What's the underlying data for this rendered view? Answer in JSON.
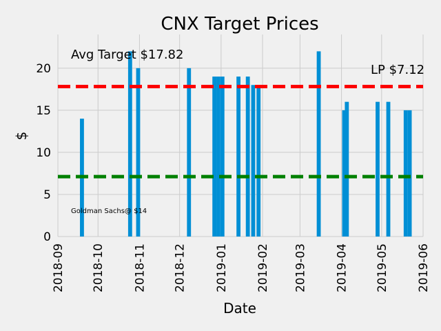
{
  "chart_data": {
    "type": "bar",
    "title": "CNX Target Prices",
    "xlabel": "Date",
    "ylabel": "$",
    "xlim": [
      "2018-09-01",
      "2019-06-01"
    ],
    "ylim": [
      0,
      24
    ],
    "y_ticks": [
      0,
      5,
      10,
      15,
      20
    ],
    "x_ticks": [
      "2018-09",
      "2018-10",
      "2018-11",
      "2018-12",
      "2019-01",
      "2019-02",
      "2019-03",
      "2019-04",
      "2019-05",
      "2019-06"
    ],
    "grid": true,
    "bar_color": "#008fd5",
    "bars": [
      {
        "date": "2018-09-19",
        "value": 14
      },
      {
        "date": "2018-10-25",
        "value": 22
      },
      {
        "date": "2018-10-31",
        "value": 20
      },
      {
        "date": "2018-12-08",
        "value": 20
      },
      {
        "date": "2018-12-27",
        "value": 19
      },
      {
        "date": "2018-12-30",
        "value": 19
      },
      {
        "date": "2019-01-02",
        "value": 19
      },
      {
        "date": "2019-01-14",
        "value": 19
      },
      {
        "date": "2019-01-21",
        "value": 19
      },
      {
        "date": "2019-01-25",
        "value": 18
      },
      {
        "date": "2019-01-29",
        "value": 18
      },
      {
        "date": "2019-03-15",
        "value": 22
      },
      {
        "date": "2019-04-03",
        "value": 15
      },
      {
        "date": "2019-04-05",
        "value": 16
      },
      {
        "date": "2019-04-28",
        "value": 16
      },
      {
        "date": "2019-05-06",
        "value": 16
      },
      {
        "date": "2019-05-19",
        "value": 15
      },
      {
        "date": "2019-05-22",
        "value": 15
      }
    ],
    "reference_lines": [
      {
        "label": "Avg Target $17.82",
        "value": 17.82,
        "color": "#fc0000"
      },
      {
        "label": "LP $7.12",
        "value": 7.12,
        "color": "#008000"
      }
    ],
    "annotations": [
      {
        "text": "Goldman Sachs@ $14"
      }
    ]
  }
}
